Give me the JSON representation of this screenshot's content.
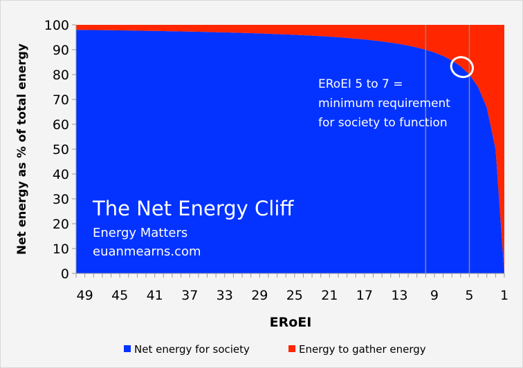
{
  "chart_data": {
    "type": "area",
    "stacked": true,
    "xlabel": "ERoEI",
    "ylabel": "Net energy as % of total energy",
    "x_reversed": true,
    "ylim": [
      0,
      100
    ],
    "yticks": [
      0,
      10,
      20,
      30,
      40,
      50,
      60,
      70,
      80,
      90,
      100
    ],
    "xtick_labels": [
      "49",
      "45",
      "41",
      "37",
      "33",
      "29",
      "25",
      "21",
      "17",
      "13",
      "9",
      "5",
      "1"
    ],
    "x": [
      50,
      49,
      48,
      47,
      46,
      45,
      44,
      43,
      42,
      41,
      40,
      39,
      38,
      37,
      36,
      35,
      34,
      33,
      32,
      31,
      30,
      29,
      28,
      27,
      26,
      25,
      24,
      23,
      22,
      21,
      20,
      19,
      18,
      17,
      16,
      15,
      14,
      13,
      12,
      11,
      10,
      9,
      8,
      7,
      6,
      5,
      4,
      3,
      2,
      1
    ],
    "series": [
      {
        "name": "Net energy for society",
        "color": "#0433ff",
        "values": [
          98,
          97.96,
          97.92,
          97.87,
          97.83,
          97.78,
          97.73,
          97.67,
          97.62,
          97.56,
          97.5,
          97.44,
          97.37,
          97.3,
          97.22,
          97.14,
          97.06,
          96.97,
          96.88,
          96.77,
          96.67,
          96.55,
          96.43,
          96.3,
          96.15,
          96,
          95.83,
          95.65,
          95.45,
          95.24,
          95,
          94.74,
          94.44,
          94.12,
          93.75,
          93.33,
          92.86,
          92.31,
          91.67,
          90.91,
          90,
          88.89,
          87.5,
          85.71,
          83.33,
          80,
          75,
          66.67,
          50,
          0
        ]
      },
      {
        "name": "Energy to gather energy",
        "color": "#ff2600",
        "values": [
          2,
          2.04,
          2.08,
          2.13,
          2.17,
          2.22,
          2.27,
          2.33,
          2.38,
          2.44,
          2.5,
          2.56,
          2.63,
          2.7,
          2.78,
          2.86,
          2.94,
          3.03,
          3.12,
          3.23,
          3.33,
          3.45,
          3.57,
          3.7,
          3.85,
          4,
          4.17,
          4.35,
          4.55,
          4.76,
          5,
          5.26,
          5.56,
          5.88,
          6.25,
          6.67,
          7.14,
          7.69,
          8.33,
          9.09,
          10,
          11.11,
          12.5,
          14.29,
          16.67,
          20,
          25,
          33.33,
          50,
          100
        ]
      }
    ],
    "reference_lines_x": [
      10,
      5
    ],
    "highlight_point": {
      "x": 6,
      "y": 83
    },
    "grid": false,
    "legend_placement": "bottom",
    "annotations": {
      "title": "The Net Energy Cliff",
      "source": "Energy Matters",
      "site": "euanmearns.com",
      "note_lines": [
        "ERoEI 5 to 7 =",
        "minimum requirement",
        "for society to function"
      ]
    }
  }
}
